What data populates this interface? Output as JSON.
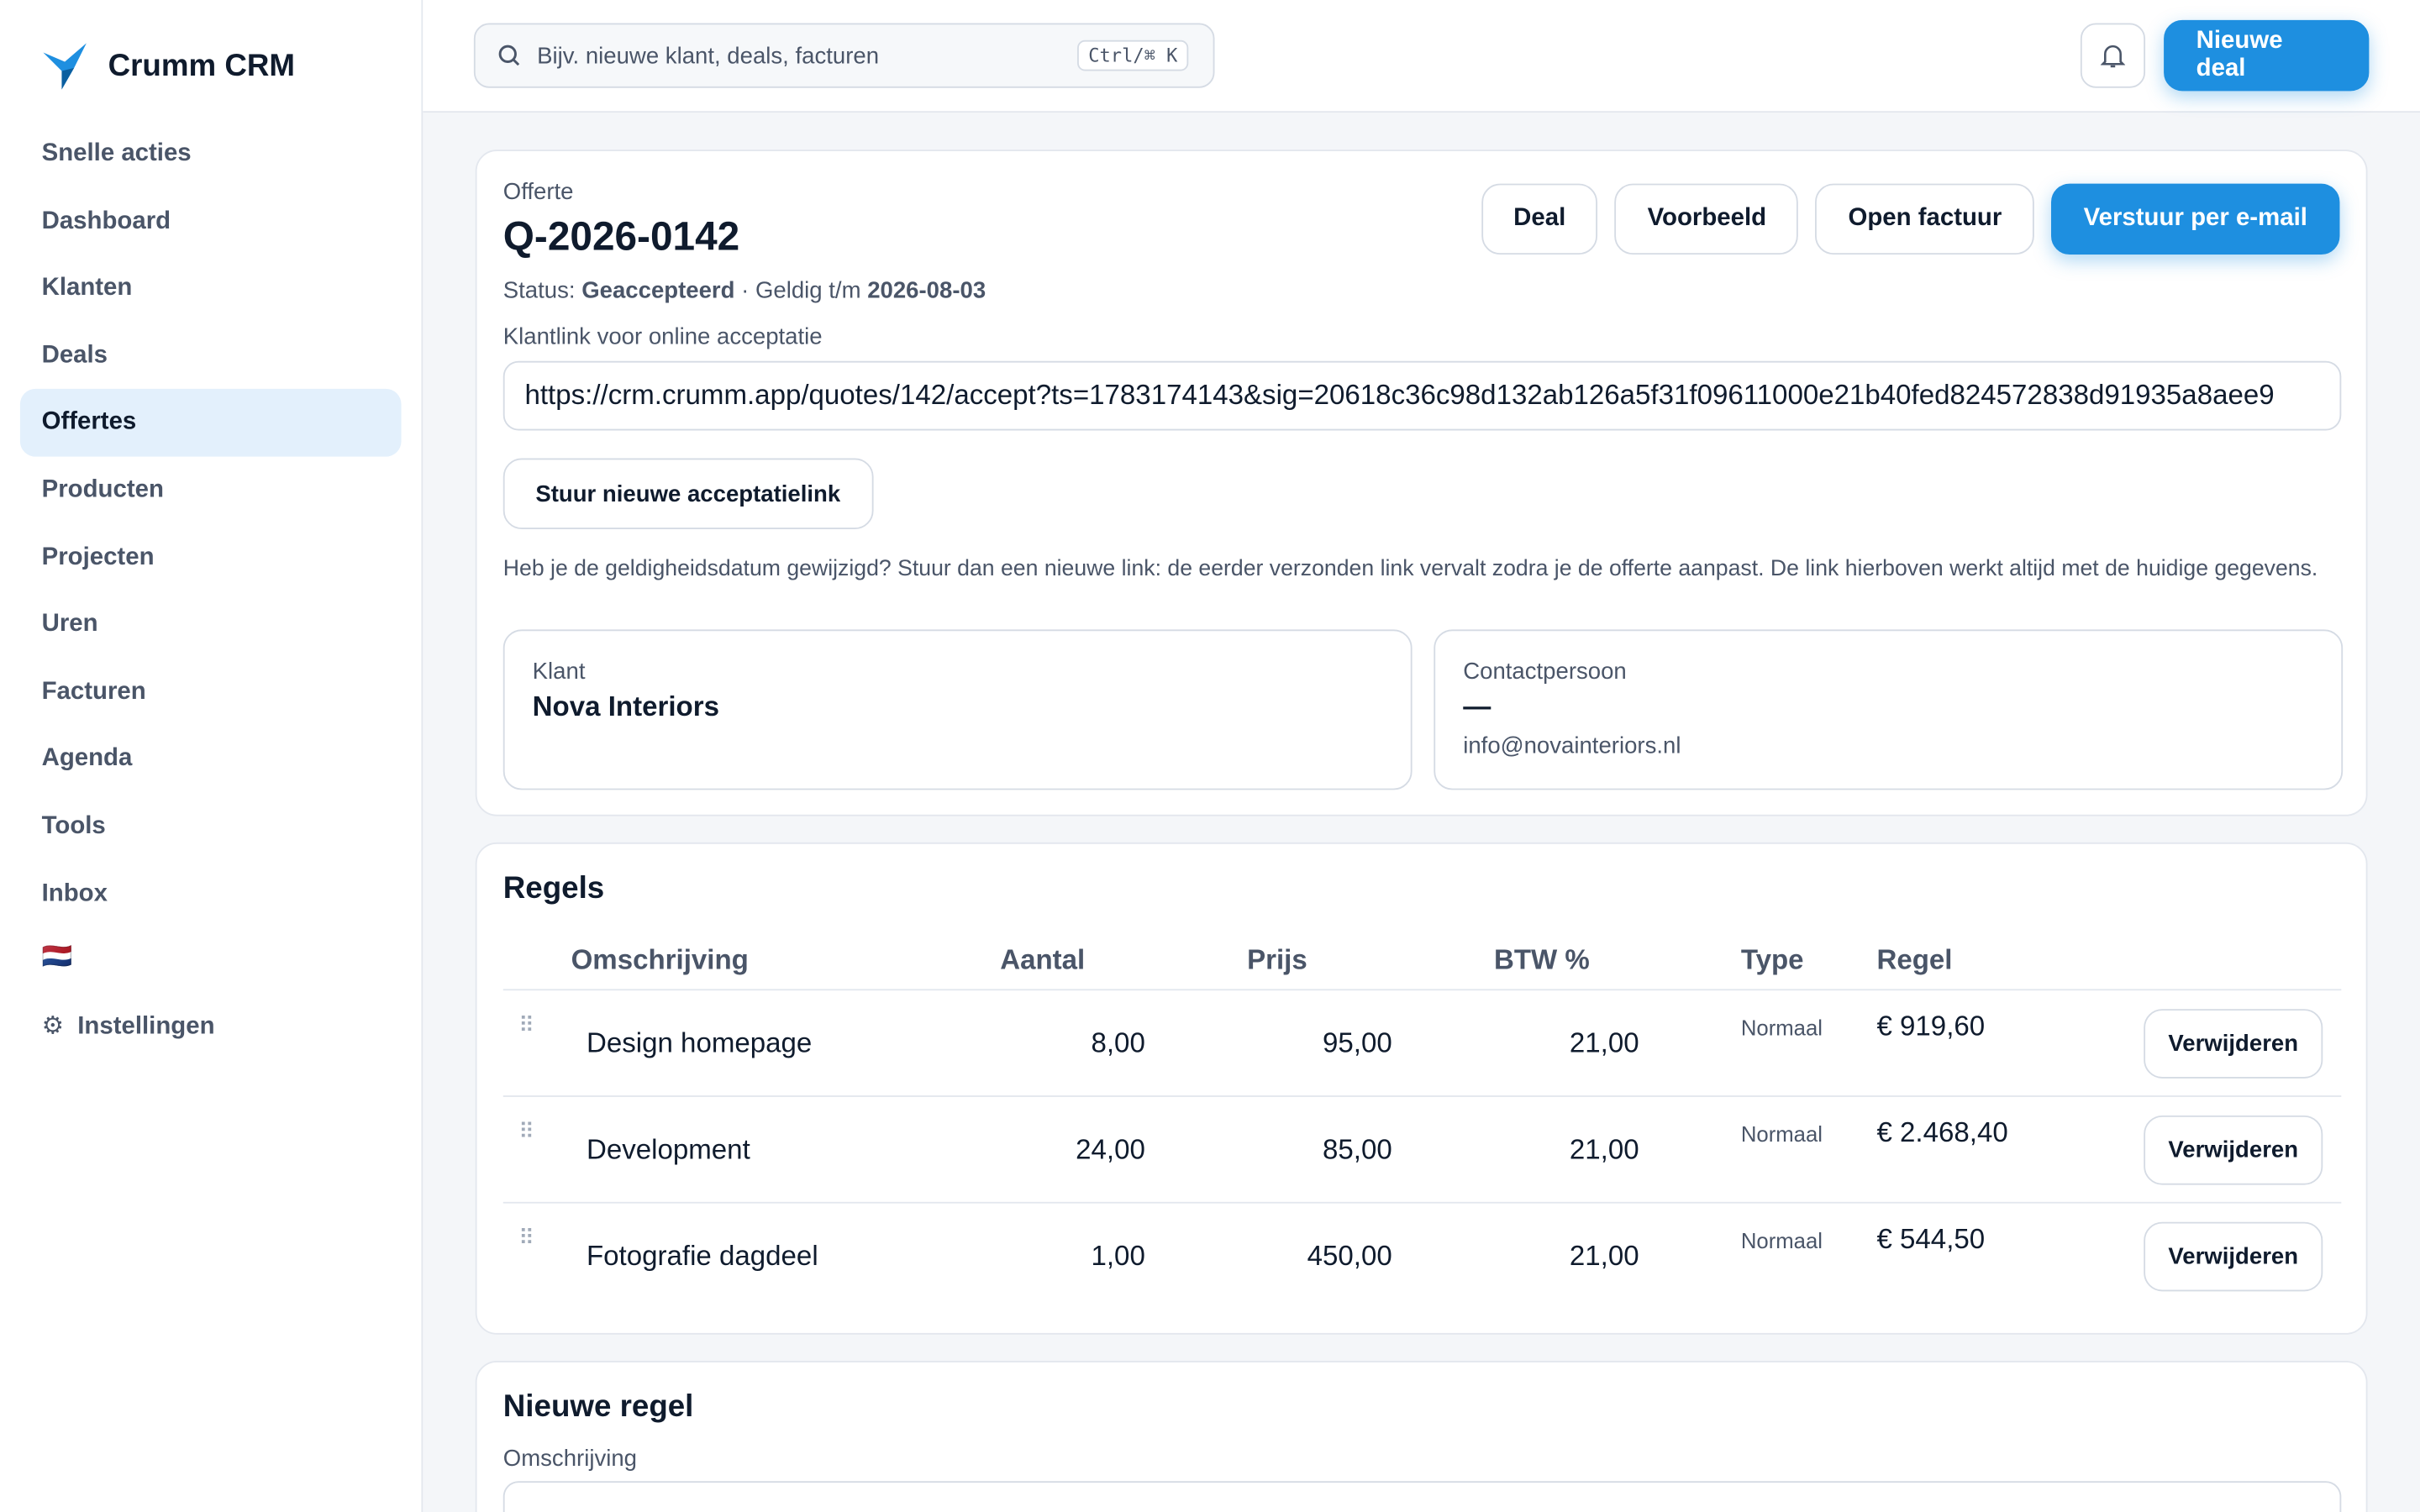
{
  "sidebar": {
    "brand": "Crumm CRM",
    "nav": [
      "Snelle acties",
      "Dashboard",
      "Klanten",
      "Deals",
      "Offertes",
      "Producten",
      "Projecten",
      "Uren",
      "Facturen",
      "Agenda",
      "Tools",
      "Inbox"
    ],
    "flag": "🇳🇱",
    "settings": "Instellingen"
  },
  "topbar": {
    "search_placeholder": "Bijv. nieuwe klant, deals, facturen",
    "shortcut": "Ctrl/⌘ K",
    "new_deal": "Nieuwe deal"
  },
  "quote": {
    "kicker": "Offerte",
    "number": "Q-2026-0142",
    "status_label": "Status:",
    "status": "Geaccepteerd",
    "valid_label": "· Geldig t/m",
    "valid_until": "2026-08-03",
    "actions": [
      "Deal",
      "Voorbeeld",
      "Open factuur",
      "Verstuur per e-mail"
    ],
    "link_label": "Klantlink voor online acceptatie",
    "link": "https://crm.crumm.app/quotes/142/accept?ts=1783174143&sig=20618c36c98d132ab126a5f31f09611000e21b40fed824572838d91935a8aee9",
    "resend": "Stuur nieuwe acceptatielink",
    "note": "Heb je de geldigheidsdatum gewijzigd? Stuur dan een nieuwe link: de eerder verzonden link vervalt zodra je de offerte aanpast. De link hierboven werkt altijd met de huidige gegevens.",
    "client_label": "Klant",
    "client": "Nova Interiors",
    "contact_label": "Contactpersoon",
    "contact": "—",
    "email": "info@novainteriors.nl"
  },
  "lines": {
    "title": "Regels",
    "columns": [
      "Omschrijving",
      "Aantal",
      "Prijs",
      "BTW %",
      "Type",
      "Regel"
    ],
    "rows": [
      [
        "Design homepage",
        "8,00",
        "95,00",
        "21,00",
        "Normaal",
        "€ 919,60"
      ],
      [
        "Development",
        "24,00",
        "85,00",
        "21,00",
        "Normaal",
        "€ 2.468,40"
      ],
      [
        "Fotografie dagdeel",
        "1,00",
        "450,00",
        "21,00",
        "Normaal",
        "€ 544,50"
      ]
    ],
    "delete": "Verwijderen"
  },
  "new_line": {
    "title": "Nieuwe regel",
    "label": "Omschrijving"
  }
}
